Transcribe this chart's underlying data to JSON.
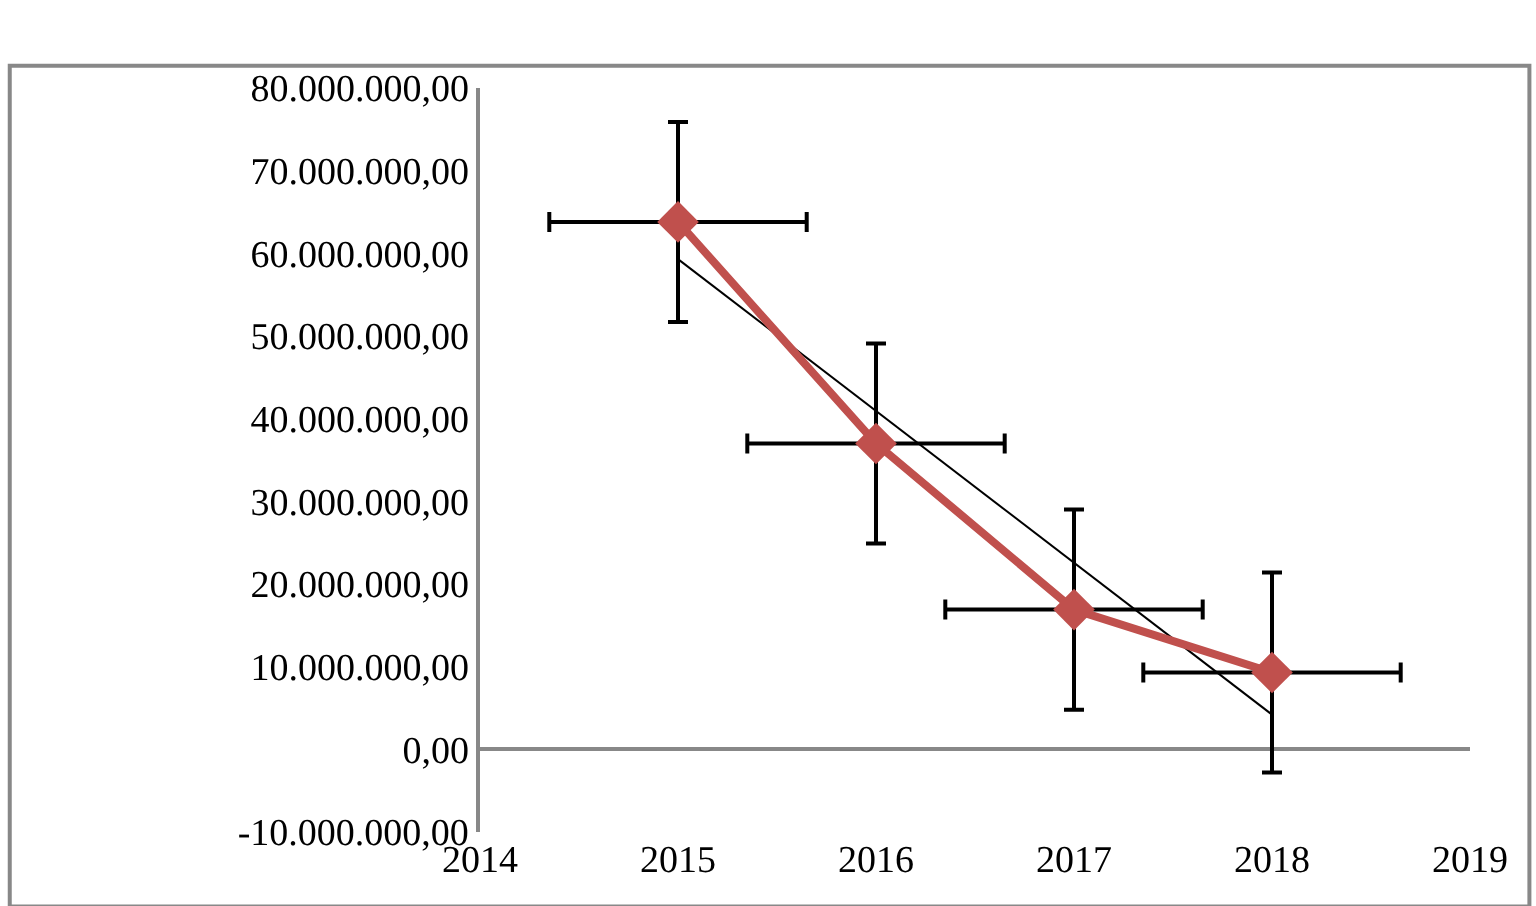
{
  "chart_data": {
    "type": "line",
    "x": [
      2015,
      2016,
      2017,
      2018
    ],
    "series": [
      {
        "color": "#c0504d",
        "values": [
          63800000.0,
          37000000.0,
          16900000.0,
          9300000.0
        ],
        "errors": [
          12100000.0,
          12100000.0,
          12100000.0,
          12100000.0
        ],
        "xerrors": [
          0.65,
          0.65,
          0.65,
          0.65
        ],
        "marker": "diamond"
      },
      {
        "type": "line",
        "color": "#000000",
        "x": [
          2015,
          2018
        ],
        "values": [
          59300000.0,
          4200000.0
        ],
        "marker": "none"
      }
    ],
    "xlim": [
      2014,
      2019
    ],
    "xticks": [
      2014,
      2015,
      2016,
      2017,
      2018,
      2019
    ],
    "ylim": [
      -10000000,
      80000000
    ],
    "yticks": [
      {
        "value": -10000000,
        "label": "-10.000.000,00"
      },
      {
        "value": 0,
        "label": "0,00"
      },
      {
        "value": 10000000,
        "label": "10.000.000,00"
      },
      {
        "value": 20000000,
        "label": "20.000.000,00"
      },
      {
        "value": 30000000,
        "label": "30.000.000,00"
      },
      {
        "value": 40000000,
        "label": "40.000.000,00"
      },
      {
        "value": 50000000,
        "label": "50.000.000,00"
      },
      {
        "value": 60000000,
        "label": "60.000.000,00"
      },
      {
        "value": 70000000,
        "label": "70.000.000,00"
      },
      {
        "value": 80000000,
        "label": "80.000.000,00"
      }
    ]
  }
}
